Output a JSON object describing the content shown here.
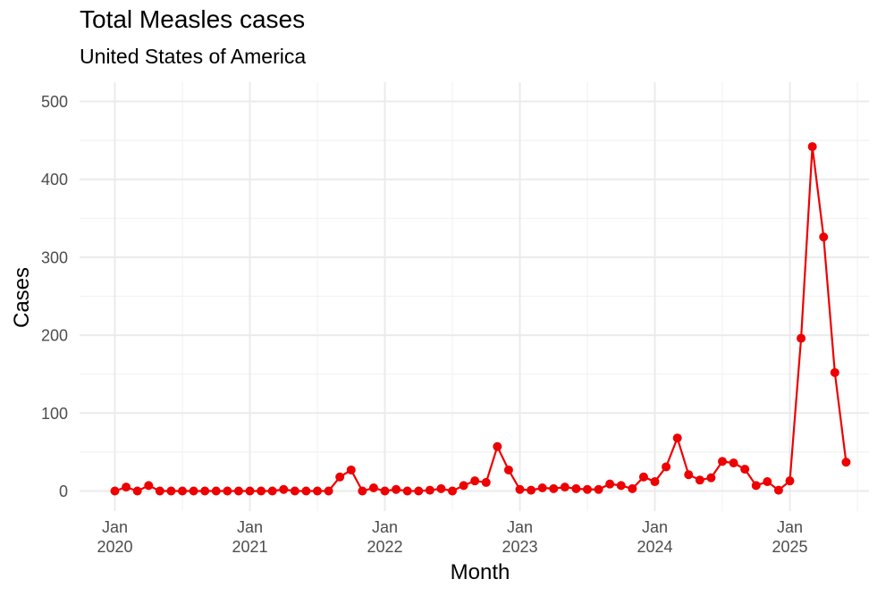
{
  "chart_data": {
    "type": "line",
    "title": "Total Measles cases",
    "subtitle": "United States of America",
    "xlabel": "Month",
    "ylabel": "Cases",
    "ylim": [
      0,
      500
    ],
    "yticks": [
      0,
      100,
      200,
      300,
      400,
      500
    ],
    "xticks": [
      {
        "date": "2020-01",
        "line1": "Jan",
        "line2": "2020"
      },
      {
        "date": "2021-01",
        "line1": "Jan",
        "line2": "2021"
      },
      {
        "date": "2022-01",
        "line1": "Jan",
        "line2": "2022"
      },
      {
        "date": "2023-01",
        "line1": "Jan",
        "line2": "2023"
      },
      {
        "date": "2024-01",
        "line1": "Jan",
        "line2": "2024"
      },
      {
        "date": "2025-01",
        "line1": "Jan",
        "line2": "2025"
      }
    ],
    "grid": true,
    "color": "#ee0000",
    "series": [
      {
        "x": [
          "2020-01",
          "2020-02",
          "2020-03",
          "2020-04",
          "2020-05",
          "2020-06",
          "2020-07",
          "2020-08",
          "2020-09",
          "2020-10",
          "2020-11",
          "2020-12",
          "2021-01",
          "2021-02",
          "2021-03",
          "2021-04",
          "2021-05",
          "2021-06",
          "2021-07",
          "2021-08",
          "2021-09",
          "2021-10",
          "2021-11",
          "2021-12",
          "2022-01",
          "2022-02",
          "2022-03",
          "2022-04",
          "2022-05",
          "2022-06",
          "2022-07",
          "2022-08",
          "2022-09",
          "2022-10",
          "2022-11",
          "2022-12",
          "2023-01",
          "2023-02",
          "2023-03",
          "2023-04",
          "2023-05",
          "2023-06",
          "2023-07",
          "2023-08",
          "2023-09",
          "2023-10",
          "2023-11",
          "2023-12",
          "2024-01",
          "2024-02",
          "2024-03",
          "2024-04",
          "2024-05",
          "2024-06",
          "2024-07",
          "2024-08",
          "2024-09",
          "2024-10",
          "2024-11",
          "2024-12",
          "2025-01",
          "2025-02",
          "2025-03",
          "2025-04",
          "2025-05",
          "2025-06"
        ],
        "values": [
          0,
          5,
          0,
          7,
          0,
          0,
          0,
          0,
          0,
          0,
          0,
          0,
          0,
          0,
          0,
          2,
          0,
          0,
          0,
          0,
          18,
          27,
          0,
          4,
          0,
          2,
          0,
          0,
          1,
          3,
          0,
          7,
          13,
          11,
          57,
          27,
          2,
          1,
          4,
          3,
          5,
          3,
          2,
          2,
          9,
          7,
          3,
          18,
          12,
          31,
          68,
          21,
          14,
          17,
          38,
          36,
          28,
          7,
          12,
          1,
          13,
          196,
          442,
          326,
          152,
          37
        ]
      }
    ]
  }
}
